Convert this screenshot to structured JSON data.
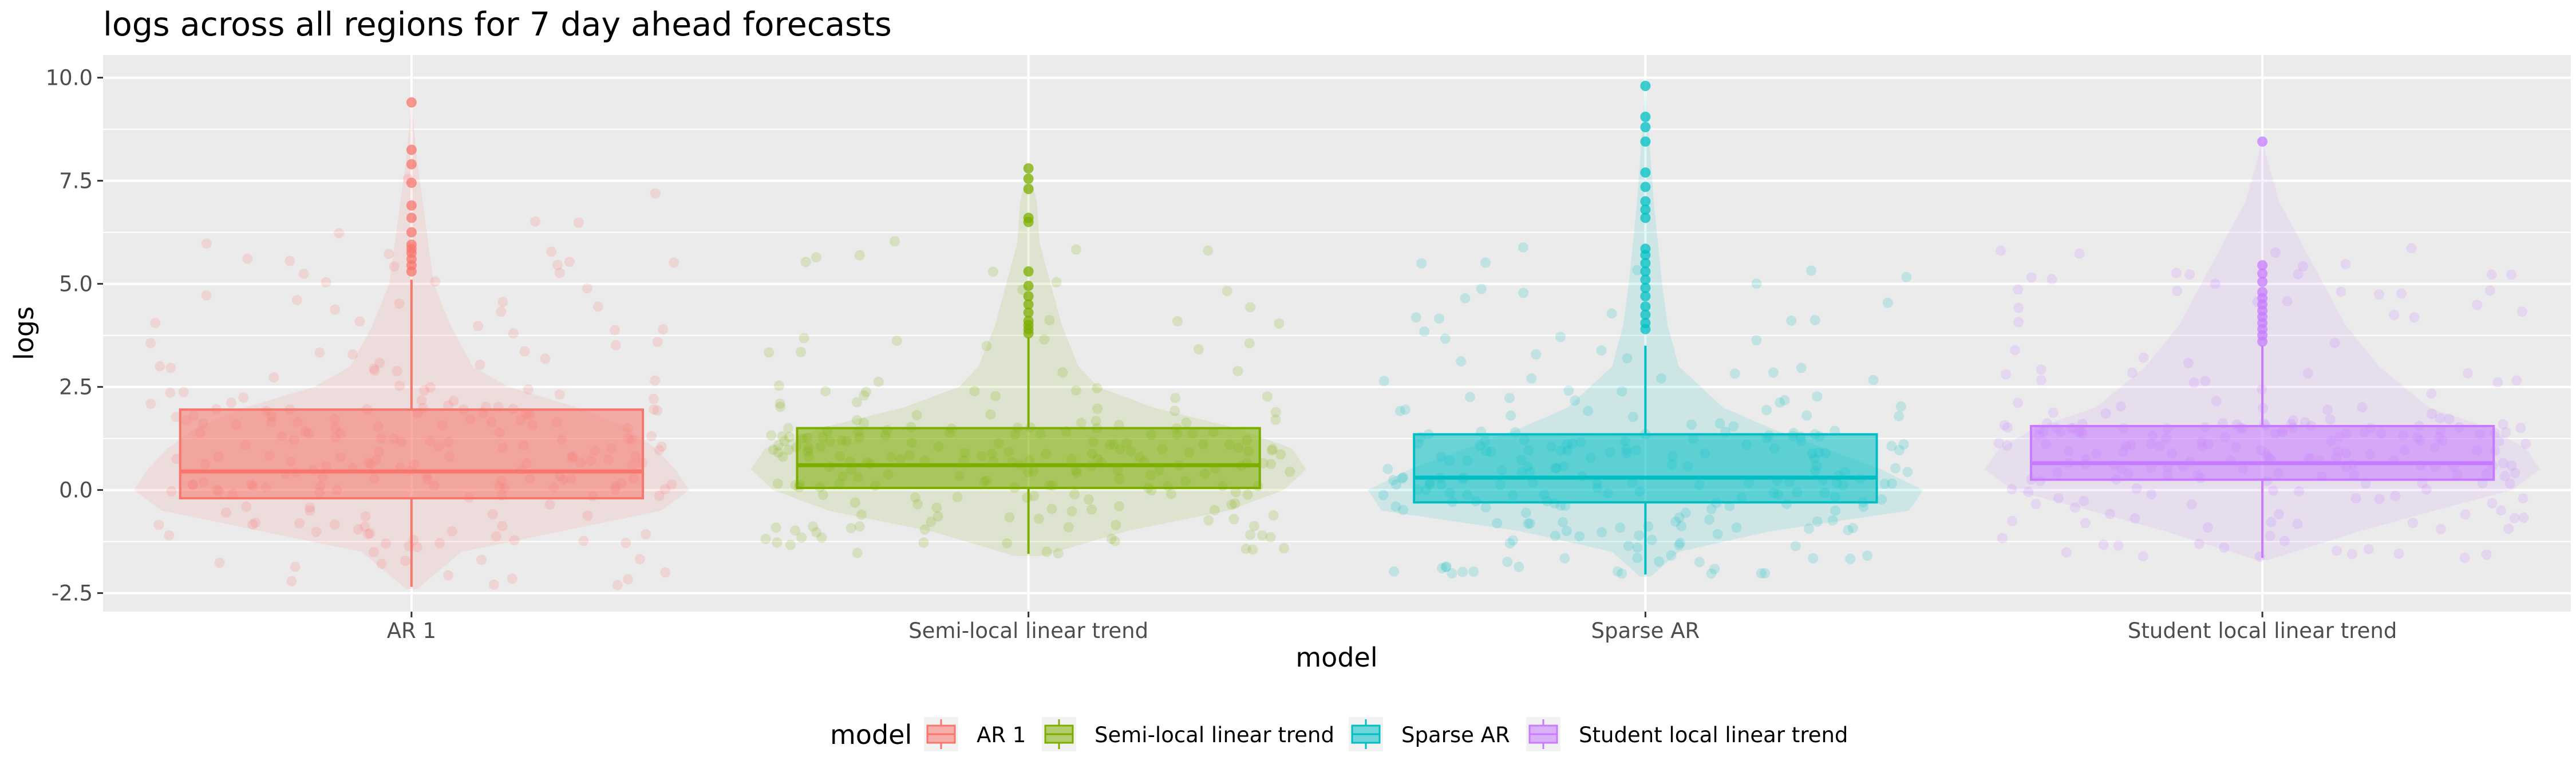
{
  "chart_data": {
    "type": "box-violin",
    "title": "logs across all regions for 7 day ahead forecasts",
    "xlabel": "model",
    "ylabel": "logs",
    "ylim": [
      -2.95,
      10.55
    ],
    "yticks": [
      -2.5,
      0.0,
      2.5,
      5.0,
      7.5,
      10.0
    ],
    "ytick_labels": [
      "-2.5",
      "0.0",
      "2.5",
      "5.0",
      "7.5",
      "10.0"
    ],
    "categories": [
      "AR 1",
      "Semi-local linear trend",
      "Sparse AR",
      "Student local linear trend"
    ],
    "grid": true,
    "legend_position": "bottom",
    "legend_title": "model",
    "series": [
      {
        "name": "AR 1",
        "color": "#F8766D",
        "box": {
          "q1": -0.2,
          "median": 0.45,
          "q3": 1.95,
          "whisker_low": -2.35,
          "whisker_high": 5.1
        },
        "outliers": [
          5.3,
          5.45,
          5.6,
          5.75,
          5.85,
          5.95,
          6.25,
          6.6,
          6.9,
          7.45,
          7.9,
          8.25,
          9.4
        ],
        "violin": [
          [
            -2.4,
            0.02
          ],
          [
            -1.5,
            0.18
          ],
          [
            -0.5,
            0.9
          ],
          [
            0.0,
            1.0
          ],
          [
            0.5,
            0.95
          ],
          [
            1.0,
            0.88
          ],
          [
            1.5,
            0.78
          ],
          [
            2.0,
            0.6
          ],
          [
            2.5,
            0.35
          ],
          [
            3.0,
            0.22
          ],
          [
            4.0,
            0.14
          ],
          [
            5.0,
            0.08
          ],
          [
            6.0,
            0.06
          ],
          [
            7.0,
            0.04
          ],
          [
            8.0,
            0.02
          ],
          [
            9.4,
            0.0
          ]
        ]
      },
      {
        "name": "Semi-local linear trend",
        "color": "#7CAE00",
        "box": {
          "q1": 0.05,
          "median": 0.6,
          "q3": 1.5,
          "whisker_low": -1.55,
          "whisker_high": 3.7
        },
        "outliers": [
          3.8,
          3.9,
          4.0,
          4.1,
          4.3,
          4.5,
          4.7,
          4.95,
          5.3,
          6.5,
          6.6,
          7.3,
          7.55,
          7.8
        ],
        "violin": [
          [
            -1.6,
            0.05
          ],
          [
            -1.0,
            0.35
          ],
          [
            -0.5,
            0.72
          ],
          [
            0.0,
            0.92
          ],
          [
            0.5,
            1.0
          ],
          [
            1.0,
            0.95
          ],
          [
            1.5,
            0.75
          ],
          [
            2.0,
            0.45
          ],
          [
            2.5,
            0.25
          ],
          [
            3.0,
            0.18
          ],
          [
            4.0,
            0.12
          ],
          [
            5.0,
            0.08
          ],
          [
            6.0,
            0.04
          ],
          [
            7.0,
            0.03
          ],
          [
            7.8,
            0.0
          ]
        ]
      },
      {
        "name": "Sparse AR",
        "color": "#00BFC4",
        "box": {
          "q1": -0.3,
          "median": 0.3,
          "q3": 1.35,
          "whisker_low": -2.05,
          "whisker_high": 3.5
        },
        "outliers": [
          3.9,
          4.05,
          4.25,
          4.45,
          4.7,
          4.9,
          5.1,
          5.3,
          5.5,
          5.7,
          5.85,
          6.6,
          6.8,
          7.0,
          7.35,
          7.7,
          8.45,
          8.8,
          9.05,
          9.8
        ],
        "violin": [
          [
            -2.1,
            0.02
          ],
          [
            -1.5,
            0.12
          ],
          [
            -1.0,
            0.45
          ],
          [
            -0.5,
            0.95
          ],
          [
            0.0,
            1.0
          ],
          [
            0.5,
            0.85
          ],
          [
            1.0,
            0.65
          ],
          [
            1.5,
            0.45
          ],
          [
            2.0,
            0.28
          ],
          [
            3.0,
            0.12
          ],
          [
            4.0,
            0.08
          ],
          [
            5.0,
            0.06
          ],
          [
            7.0,
            0.03
          ],
          [
            9.8,
            0.0
          ]
        ]
      },
      {
        "name": "Student local linear trend",
        "color": "#C77CFF",
        "box": {
          "q1": 0.25,
          "median": 0.65,
          "q3": 1.55,
          "whisker_low": -1.65,
          "whisker_high": 3.5
        },
        "outliers": [
          3.6,
          3.75,
          3.9,
          4.05,
          4.2,
          4.35,
          4.5,
          4.65,
          4.8,
          5.05,
          5.25,
          5.45,
          8.45
        ],
        "violin": [
          [
            -1.7,
            0.02
          ],
          [
            -1.0,
            0.35
          ],
          [
            -0.5,
            0.62
          ],
          [
            0.0,
            0.9
          ],
          [
            0.5,
            1.0
          ],
          [
            1.0,
            0.95
          ],
          [
            1.5,
            0.82
          ],
          [
            2.0,
            0.6
          ],
          [
            3.0,
            0.42
          ],
          [
            4.0,
            0.3
          ],
          [
            5.0,
            0.22
          ],
          [
            6.0,
            0.14
          ],
          [
            7.0,
            0.06
          ],
          [
            8.45,
            0.0
          ]
        ]
      }
    ]
  }
}
